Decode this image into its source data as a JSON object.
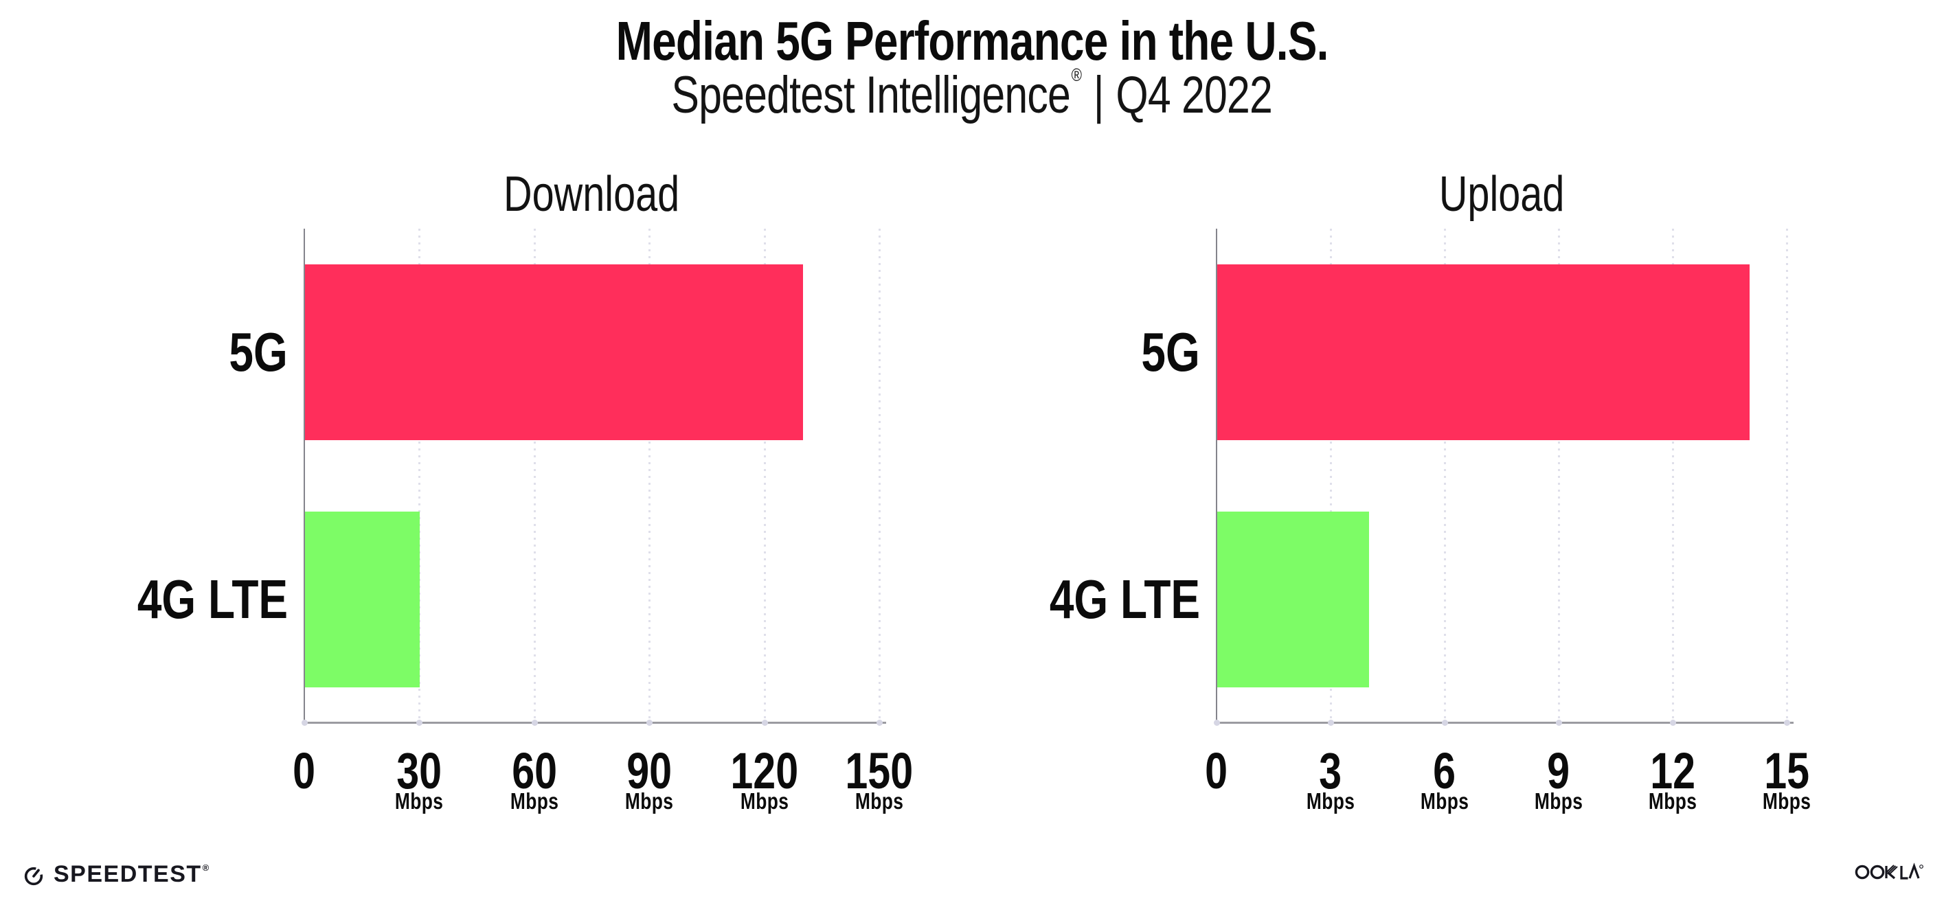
{
  "title": "Median 5G Performance in the U.S.",
  "subtitle": {
    "brand": "Speedtest Intelligence",
    "registered_mark": "®",
    "separator": "|",
    "period": "Q4 2022"
  },
  "chart_data": [
    {
      "type": "bar",
      "orientation": "horizontal",
      "title": "Download",
      "categories": [
        "5G",
        "4G LTE"
      ],
      "values": [
        130,
        30
      ],
      "unit": "Mbps",
      "xlim": [
        0,
        150
      ],
      "xticks": [
        0,
        30,
        60,
        90,
        120,
        150
      ],
      "xtick_unit_label": "Mbps",
      "unit_shown_on_zero_tick": false,
      "bar_colors": [
        "#FF2E5B",
        "#7DFC66"
      ],
      "grid": "dotted-vertical",
      "legend": "none"
    },
    {
      "type": "bar",
      "orientation": "horizontal",
      "title": "Upload",
      "categories": [
        "5G",
        "4G LTE"
      ],
      "values": [
        14,
        4
      ],
      "unit": "Mbps",
      "xlim": [
        0,
        15
      ],
      "xticks": [
        0,
        3,
        6,
        9,
        12,
        15
      ],
      "xtick_unit_label": "Mbps",
      "unit_shown_on_zero_tick": false,
      "bar_colors": [
        "#FF2E5B",
        "#7DFC66"
      ],
      "grid": "dotted-vertical",
      "legend": "none"
    }
  ],
  "footer": {
    "speedtest_label": "SPEEDTEST",
    "speedtest_mark": "®",
    "speedtest_icon": "gauge-icon",
    "ookla_label": "OOKLA",
    "ookla_mark": "®"
  },
  "colors": {
    "bar_5g": "#FF2E5B",
    "bar_4g_lte": "#7DFC66",
    "text": "#0B0B0B",
    "axis_line": "#9B9BA1",
    "y_spine": "#84848C",
    "grid_dot": "#DFDFEA",
    "tick_dot": "#D6D6E4",
    "background": "#FFFFFF",
    "logo": "#17171F"
  }
}
